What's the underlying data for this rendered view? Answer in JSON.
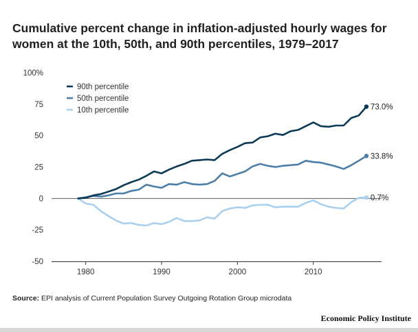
{
  "title": "Cumulative percent change in inflation-adjusted hourly wages for women at the 10th, 50th, and 90th percentiles, 1979–2017",
  "source_label": "Source:",
  "source_text": " EPI analysis of Current Population Survey Outgoing Rotation Group microdata",
  "brand": "Economic Policy Institute",
  "chart_data": {
    "type": "line",
    "x": [
      1979,
      1980,
      1981,
      1982,
      1983,
      1984,
      1985,
      1986,
      1987,
      1988,
      1989,
      1990,
      1991,
      1992,
      1993,
      1994,
      1995,
      1996,
      1997,
      1998,
      1999,
      2000,
      2001,
      2002,
      2003,
      2004,
      2005,
      2006,
      2007,
      2008,
      2009,
      2010,
      2011,
      2012,
      2013,
      2014,
      2015,
      2016,
      2017
    ],
    "xticks": [
      1980,
      1990,
      2000,
      2010
    ],
    "xtick_labels": [
      "1980",
      "1990",
      "2000",
      "2010"
    ],
    "xlim": [
      1975.5,
      2019
    ],
    "yticks": [
      -50,
      -25,
      0,
      25,
      50,
      75,
      100
    ],
    "ytick_labels": [
      "-50",
      "-25",
      "0",
      "25",
      "50",
      "75",
      "100%"
    ],
    "ylim": [
      -50,
      100
    ],
    "grid": false,
    "zero_line": true,
    "legend_position": "top-left",
    "series": [
      {
        "name": "90th percentile",
        "color": "#0b3a56",
        "values": [
          0.0,
          0.5,
          2.5,
          3.5,
          5.5,
          7.5,
          10.5,
          13.0,
          15.0,
          18.0,
          21.5,
          20.0,
          23.0,
          25.5,
          27.5,
          30.0,
          30.5,
          31.0,
          30.5,
          35.5,
          38.5,
          41.0,
          44.0,
          44.5,
          48.5,
          49.5,
          51.5,
          50.5,
          53.5,
          54.5,
          57.5,
          60.5,
          57.5,
          57.0,
          58.0,
          58.0,
          64.0,
          66.0,
          73.0
        ],
        "end_label": "73.0%"
      },
      {
        "name": "50th percentile",
        "color": "#4d7ea8",
        "values": [
          0.0,
          1.0,
          2.0,
          1.5,
          2.5,
          4.0,
          4.0,
          6.0,
          7.0,
          11.0,
          9.5,
          8.5,
          11.5,
          11.0,
          13.0,
          11.5,
          11.0,
          11.5,
          14.0,
          20.0,
          17.5,
          19.5,
          21.5,
          25.5,
          27.5,
          26.0,
          25.0,
          26.0,
          26.5,
          27.0,
          30.0,
          29.0,
          28.5,
          27.0,
          25.5,
          23.5,
          26.5,
          30.0,
          33.8
        ],
        "end_label": "33.8%"
      },
      {
        "name": "10th percentile",
        "color": "#a9d0ee",
        "values": [
          0.0,
          -4.0,
          -5.0,
          -10.0,
          -14.0,
          -17.5,
          -20.0,
          -19.5,
          -21.0,
          -21.5,
          -19.5,
          -20.5,
          -18.5,
          -15.5,
          -18.0,
          -18.0,
          -17.5,
          -15.0,
          -16.0,
          -10.0,
          -8.0,
          -7.0,
          -7.5,
          -5.5,
          -5.0,
          -5.0,
          -7.0,
          -6.5,
          -6.5,
          -6.5,
          -3.5,
          -1.5,
          -4.5,
          -6.5,
          -7.5,
          -8.0,
          -3.0,
          0.5,
          0.7
        ],
        "end_label": "0.7%"
      }
    ]
  }
}
